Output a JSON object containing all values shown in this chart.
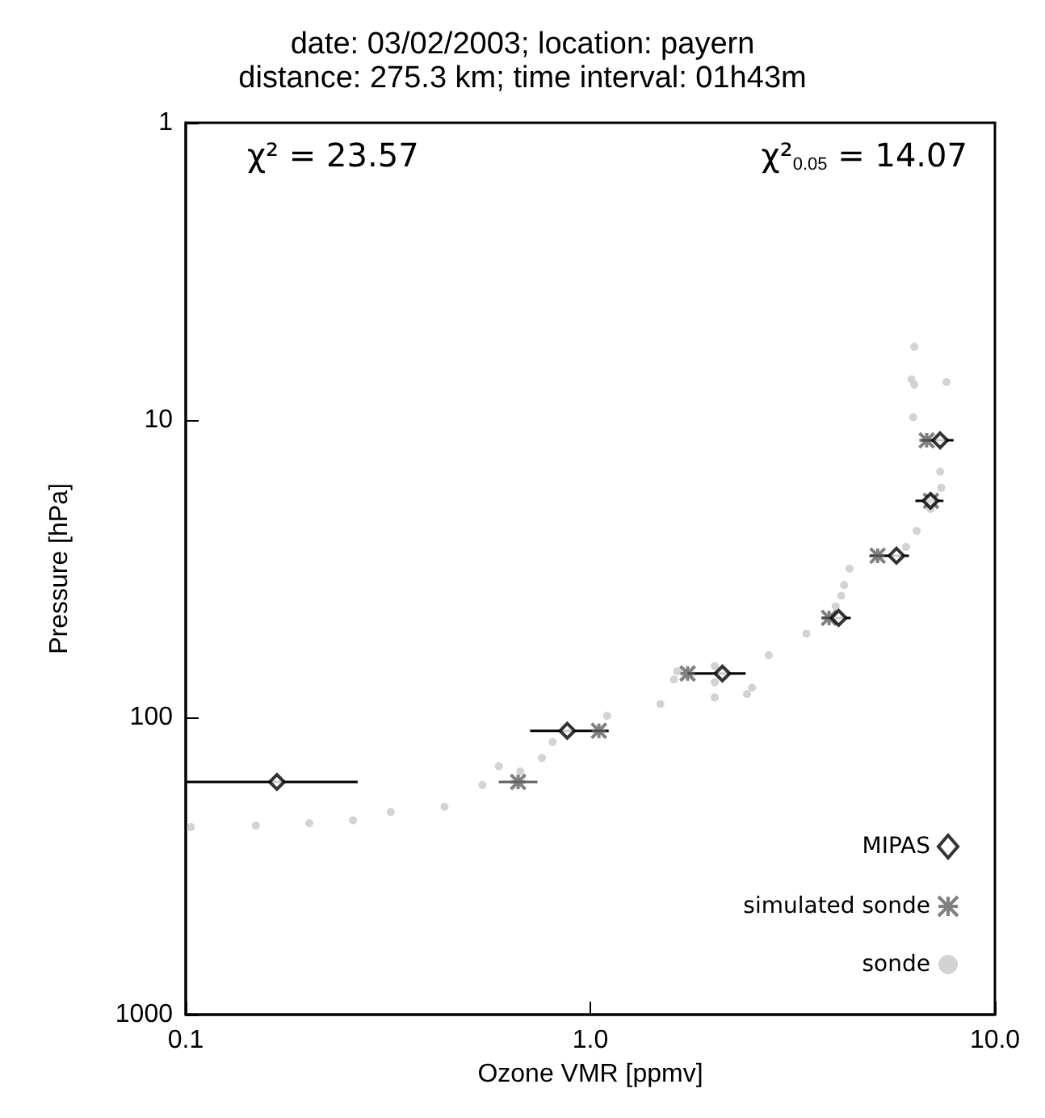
{
  "chart_data": {
    "type": "scatter",
    "title": "date: 03/02/2003; location: payern\ndistance: 275.3 km; time interval: 01h43m",
    "xlabel": "Ozone VMR [ppmv]",
    "ylabel": "Pressure [hPa]",
    "annotations": [
      "χ² = 23.57",
      "χ²$_{0.05}$ = 14.07"
    ],
    "log": "xy",
    "grid": false,
    "legend": "bottom right",
    "xlim": [
      0.1,
      10
    ],
    "xticks": [
      0.1,
      {
        "value": 1,
        "label": "1.0"
      },
      {
        "value": 10,
        "label": "10.0"
      }
    ],
    "ylim": [
      1000,
      1
    ],
    "yticks": [
      1,
      10,
      100,
      1000
    ],
    "series": [
      {
        "name": "MIPAS",
        "color": "#000000",
        "marker": "diamond",
        "x": [
          7.32,
          6.93,
          5.71,
          4.11,
          2.12,
          0.877,
          0.168
        ],
        "values": [
          11.7,
          18.7,
          28.6,
          46.3,
          71.2,
          111,
          165
        ],
        "xerrors": [
          [
            6.6,
            7.9
          ],
          [
            6.36,
            7.46
          ],
          [
            4.9,
            6.13
          ],
          [
            3.73,
            4.4
          ],
          [
            1.74,
            2.42
          ],
          [
            0.71,
            1.11
          ],
          [
            0.1,
            0.266
          ]
        ]
      },
      {
        "name": "simulated sonde",
        "color": "#606060",
        "marker": "cross",
        "x": [
          6.78,
          6.95,
          5.13,
          3.89,
          1.74,
          1.05,
          0.663
        ],
        "values": [
          11.7,
          18.7,
          28.6,
          46.3,
          71.2,
          111,
          165
        ],
        "xerrors": [
          null,
          null,
          null,
          null,
          null,
          null,
          [
            0.594,
            0.74
          ]
        ]
      },
      {
        "name": "sonde",
        "color": "#c8c8c8",
        "marker": "circle",
        "x": [
          6.32,
          6.22,
          7.59,
          6.32,
          6.28,
          7.03,
          7.32,
          7.37,
          6.93,
          6.41,
          6.03,
          5.1,
          4.37,
          4.24,
          4.17,
          4.04,
          3.92,
          3.42,
          2.76,
          2.03,
          1.64,
          1.61,
          2.03,
          2.51,
          2.44,
          2.03,
          1.49,
          1.1,
          1.06,
          0.807,
          0.759,
          0.594,
          0.671,
          0.541,
          0.436,
          0.321,
          0.259,
          0.202,
          0.149,
          0.103
        ],
        "values": [
          5.67,
          7.29,
          7.45,
          7.6,
          9.78,
          null,
          14.9,
          16.9,
          19.9,
          23.6,
          26.7,
          null,
          31.6,
          35.9,
          39,
          42.4,
          null,
          52.3,
          61.8,
          67.2,
          70,
          74.6,
          76.2,
          79.4,
          83.5,
          85.7,
          90.2,
          98.8,
          null,
          121,
          137,
          146,
          152,
          169,
          200,
          208,
          222,
          227,
          231,
          234
        ]
      }
    ]
  }
}
